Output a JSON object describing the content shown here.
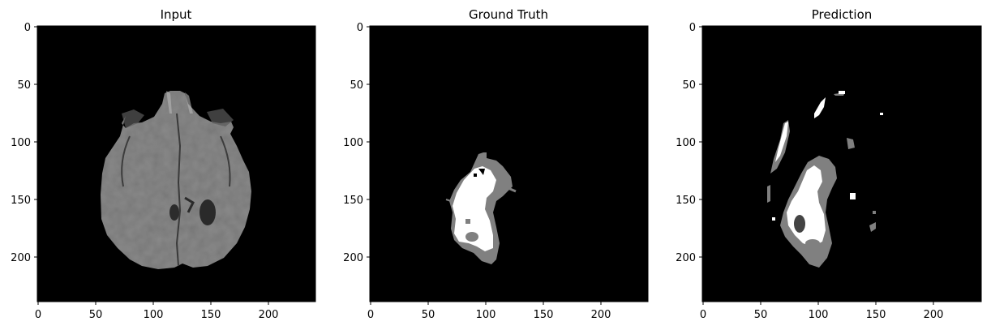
{
  "panels": [
    {
      "title": "Input",
      "content": "brain-mri",
      "x_ticks": [
        "0",
        "50",
        "100",
        "150",
        "200"
      ],
      "y_ticks": [
        "0",
        "50",
        "100",
        "150",
        "200"
      ]
    },
    {
      "title": "Ground Truth",
      "content": "ground-truth-mask",
      "x_ticks": [
        "0",
        "50",
        "100",
        "150",
        "200"
      ],
      "y_ticks": [
        "0",
        "50",
        "100",
        "150",
        "200"
      ]
    },
    {
      "title": "Prediction",
      "content": "prediction-mask",
      "x_ticks": [
        "0",
        "50",
        "100",
        "150",
        "200"
      ],
      "y_ticks": [
        "0",
        "50",
        "100",
        "150",
        "200"
      ]
    }
  ],
  "colors": {
    "background": "#000000",
    "mask_gray": "#808080",
    "mask_white": "#ffffff",
    "tissue_gray": "#707070"
  }
}
